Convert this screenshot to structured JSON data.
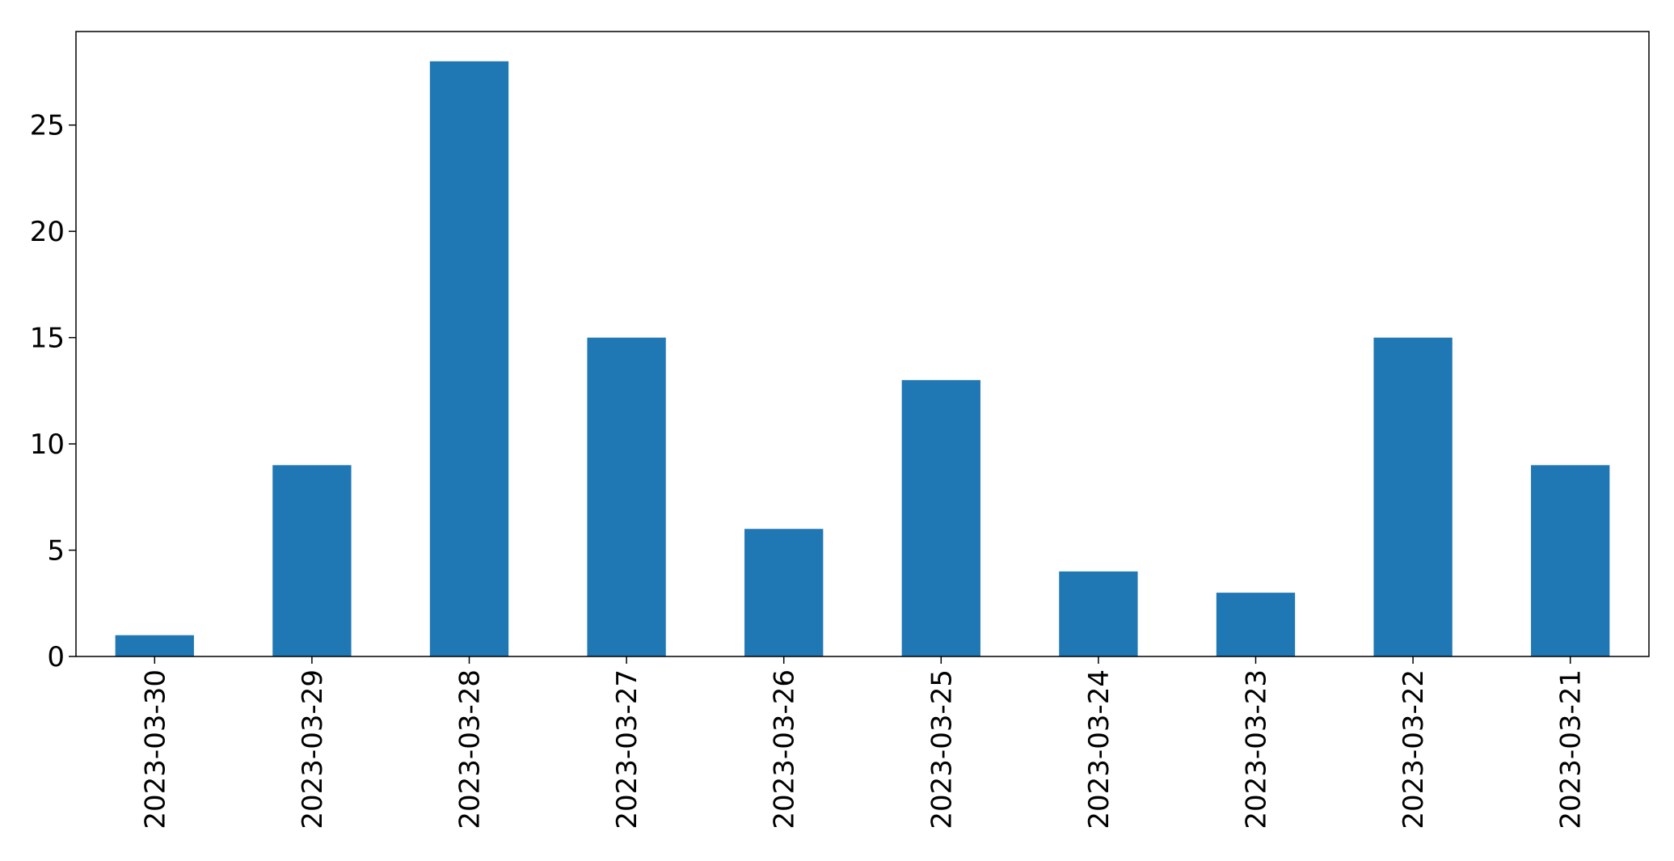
{
  "chart_data": {
    "type": "bar",
    "title": "",
    "xlabel": "",
    "ylabel": "",
    "categories": [
      "2023-03-30",
      "2023-03-29",
      "2023-03-28",
      "2023-03-27",
      "2023-03-26",
      "2023-03-25",
      "2023-03-24",
      "2023-03-23",
      "2023-03-22",
      "2023-03-21"
    ],
    "values": [
      1,
      9,
      28,
      15,
      6,
      13,
      4,
      3,
      15,
      9
    ],
    "ylim": [
      0,
      29.4
    ],
    "yticks": [
      0,
      5,
      10,
      15,
      20,
      25
    ],
    "ytick_labels": [
      "0",
      "5",
      "10",
      "15",
      "20",
      "25"
    ],
    "grid": false,
    "legend": "none",
    "bar_color": "#1f77b4",
    "axis_color": "#000000"
  }
}
